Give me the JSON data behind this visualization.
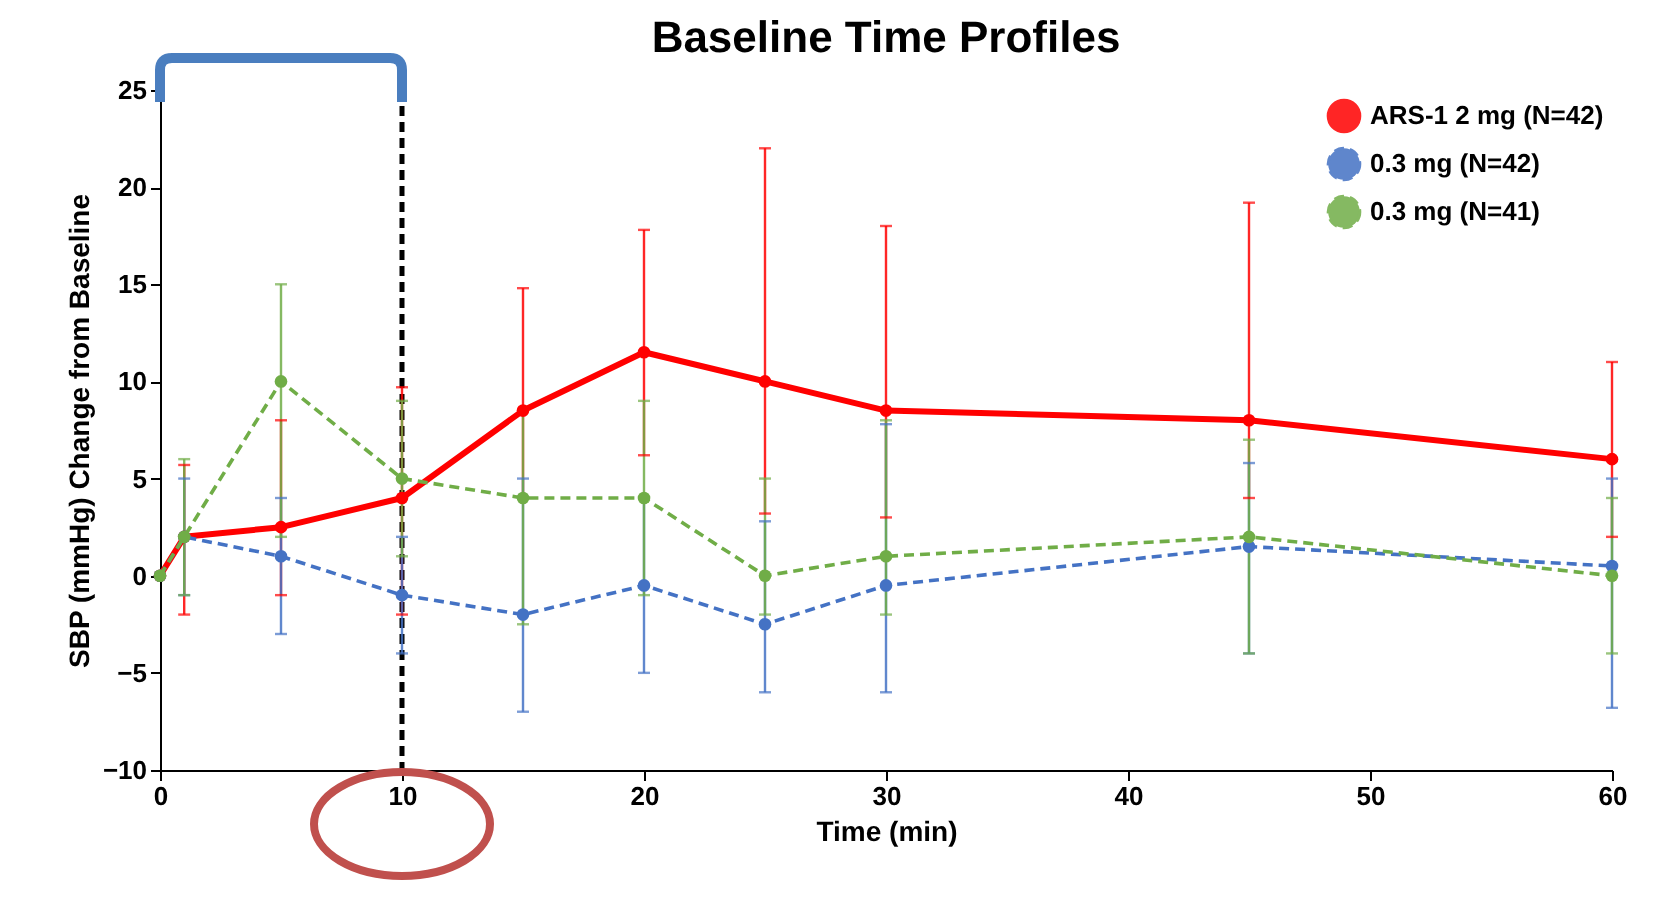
{
  "chart_data": {
    "type": "line",
    "title": "Baseline Time Profiles",
    "xlabel": "Time (min)",
    "ylabel": "SBP (mmHg) Change from Baseline",
    "x": [
      0,
      1,
      5,
      10,
      15,
      20,
      25,
      30,
      45,
      60
    ],
    "series": [
      {
        "name": "ARS-1 2 mg (N=42)",
        "color": "#ff0000",
        "line_style": "solid",
        "values": [
          0,
          2,
          2.5,
          4,
          8.5,
          11.5,
          10,
          8.5,
          8,
          6
        ],
        "errors": [
          null,
          [
            -2,
            5.7
          ],
          [
            -1,
            8
          ],
          [
            -2,
            9.7
          ],
          [
            4,
            14.8
          ],
          [
            6.2,
            17.8
          ],
          [
            3.2,
            22
          ],
          [
            3,
            18
          ],
          [
            4,
            19.2
          ],
          [
            2,
            11
          ]
        ]
      },
      {
        "name": "0.3 mg (N=42)",
        "color": "#4472c4",
        "line_style": "dashed",
        "values": [
          0,
          2,
          1,
          -1,
          -2,
          -0.5,
          -2.5,
          -0.5,
          1.5,
          0.5
        ],
        "errors": [
          null,
          [
            -1,
            5
          ],
          [
            -3,
            4
          ],
          [
            -4,
            2
          ],
          [
            -7,
            5
          ],
          [
            -5,
            4
          ],
          [
            -6,
            2.8
          ],
          [
            -6,
            7.8
          ],
          [
            -4,
            5.8
          ],
          [
            -6.8,
            5
          ]
        ]
      },
      {
        "name": "0.3 mg (N=41)",
        "color": "#70ad47",
        "line_style": "dashed",
        "values": [
          0,
          2,
          10,
          5,
          4,
          4,
          0,
          1,
          2,
          0
        ],
        "errors": [
          null,
          [
            -1,
            6
          ],
          [
            2,
            15
          ],
          [
            1,
            9
          ],
          [
            -2.5,
            8.5
          ],
          [
            -1,
            9
          ],
          [
            -2,
            5
          ],
          [
            -2,
            8
          ],
          [
            -4,
            7
          ],
          [
            -4,
            4
          ]
        ]
      }
    ],
    "xlim": [
      0,
      60
    ],
    "xticks": [
      0,
      10,
      20,
      30,
      40,
      50,
      60
    ],
    "ylim": [
      -10,
      25
    ],
    "yticks": [
      -10,
      -5,
      0,
      5,
      10,
      15,
      20,
      25
    ],
    "ref_lines": [
      {
        "axis": "x",
        "value": 10,
        "color": "#000000",
        "line_style": "dashed"
      }
    ],
    "grid": false,
    "legend": "top right",
    "marker": "circle"
  }
}
